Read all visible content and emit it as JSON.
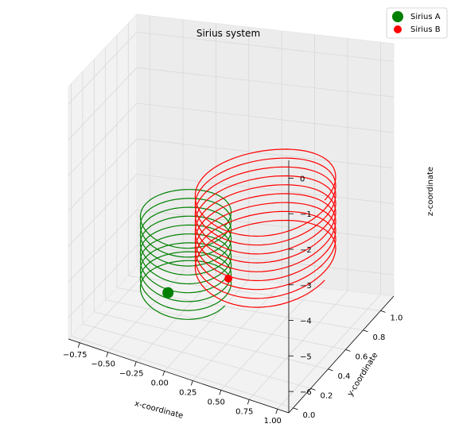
{
  "chart_data": {
    "type": "scatter",
    "title": "Sirius system",
    "xlabel": "x-coordinate",
    "ylabel": "y-coordinate",
    "zlabel": "z-coordinate",
    "xlim": [
      -0.85,
      1.1
    ],
    "ylim": [
      -0.05,
      1.15
    ],
    "zlim": [
      -6.6,
      0.5
    ],
    "x_ticks": [
      -0.75,
      -0.5,
      -0.25,
      0.0,
      0.25,
      0.5,
      0.75,
      1.0
    ],
    "x_tick_labels": [
      "−0.75",
      "−0.50",
      "−0.25",
      "0.00",
      "0.25",
      "0.50",
      "0.75",
      "1.00"
    ],
    "y_ticks": [
      0.0,
      0.2,
      0.4,
      0.6,
      0.8,
      1.0
    ],
    "y_tick_labels": [
      "0.0",
      "0.2",
      "0.4",
      "0.6",
      "0.8",
      "1.0"
    ],
    "z_ticks": [
      0,
      -1,
      -2,
      -3,
      -4,
      -5,
      -6
    ],
    "z_tick_labels": [
      "0",
      "−1",
      "−2",
      "−3",
      "−4",
      "−5",
      "−6"
    ],
    "grid": true,
    "legend_position": "top-right",
    "series": [
      {
        "name": "Sirius A",
        "color": "#008000",
        "marker_point": {
          "x": 0.0,
          "y": 0.0,
          "z": -4.5
        },
        "orbit_center": {
          "x": 0.15,
          "y": 0.0
        },
        "orbit_radius": [
          0.35,
          0.3
        ],
        "orbit_turns_z": [
          -2.1,
          -2.35,
          -2.6,
          -2.85,
          -3.1,
          -3.35,
          -3.6,
          -3.85,
          -4.1
        ]
      },
      {
        "name": "Sirius B",
        "color": "#ff0000",
        "marker_point": {
          "x": 0.3,
          "y": 0.35,
          "z": -4.6
        },
        "orbit_center": {
          "x": 0.5,
          "y": 0.5
        },
        "orbit_radius": [
          0.5,
          0.45
        ],
        "orbit_turns_z": [
          -2.2,
          -2.45,
          -2.7,
          -2.95,
          -3.2,
          -3.45,
          -3.7,
          -3.95,
          -4.2
        ]
      }
    ]
  }
}
